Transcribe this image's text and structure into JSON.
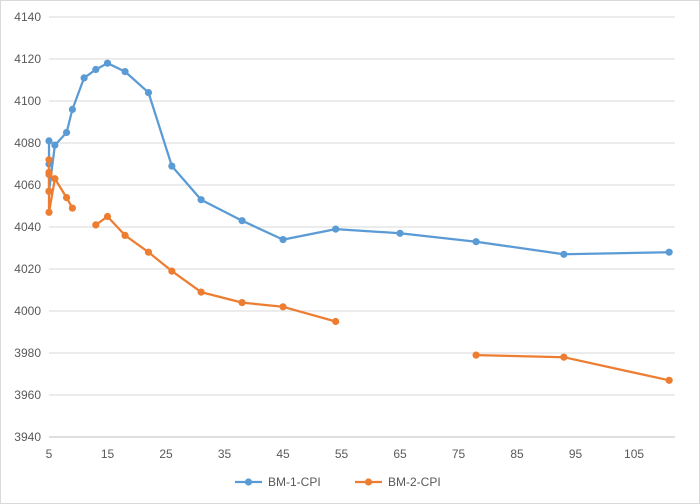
{
  "chart_data": {
    "type": "scatter",
    "title": "",
    "xlabel": "",
    "ylabel": "",
    "xlim": [
      5,
      112
    ],
    "ylim": [
      3940,
      4140
    ],
    "x_ticks": [
      5,
      15,
      25,
      35,
      45,
      55,
      65,
      75,
      85,
      95,
      105
    ],
    "y_ticks": [
      3940,
      3960,
      3980,
      4000,
      4020,
      4040,
      4060,
      4080,
      4100,
      4120,
      4140
    ],
    "grid": "horizontal",
    "legend": "bottom",
    "series": [
      {
        "name": "BM-1-CPI",
        "color": "#5b9bd5",
        "segments": [
          [
            [
              5,
              4081
            ],
            [
              5,
              4070
            ],
            [
              5,
              4057
            ],
            [
              6,
              4079
            ],
            [
              8,
              4085
            ],
            [
              9,
              4096
            ],
            [
              11,
              4111
            ],
            [
              13,
              4115
            ],
            [
              15,
              4118
            ],
            [
              18,
              4114
            ],
            [
              22,
              4104
            ],
            [
              26,
              4069
            ],
            [
              31,
              4053
            ],
            [
              38,
              4043
            ],
            [
              45,
              4034
            ],
            [
              54,
              4039
            ],
            [
              65,
              4037
            ],
            [
              78,
              4033
            ],
            [
              93,
              4027
            ],
            [
              111,
              4028
            ]
          ]
        ]
      },
      {
        "name": "BM-2-CPI",
        "color": "#ed7d31",
        "segments": [
          [
            [
              5,
              4072
            ],
            [
              5,
              4066
            ],
            [
              5,
              4065
            ],
            [
              5,
              4057
            ],
            [
              5,
              4047
            ],
            [
              6,
              4063
            ],
            [
              8,
              4054
            ],
            [
              9,
              4049
            ]
          ],
          [
            [
              13,
              4041
            ],
            [
              15,
              4045
            ],
            [
              18,
              4036
            ],
            [
              22,
              4028
            ],
            [
              26,
              4019
            ],
            [
              31,
              4009
            ],
            [
              38,
              4004
            ],
            [
              45,
              4002
            ],
            [
              54,
              3995
            ]
          ],
          [
            [
              78,
              3979
            ],
            [
              93,
              3978
            ],
            [
              111,
              3967
            ]
          ]
        ]
      }
    ]
  }
}
